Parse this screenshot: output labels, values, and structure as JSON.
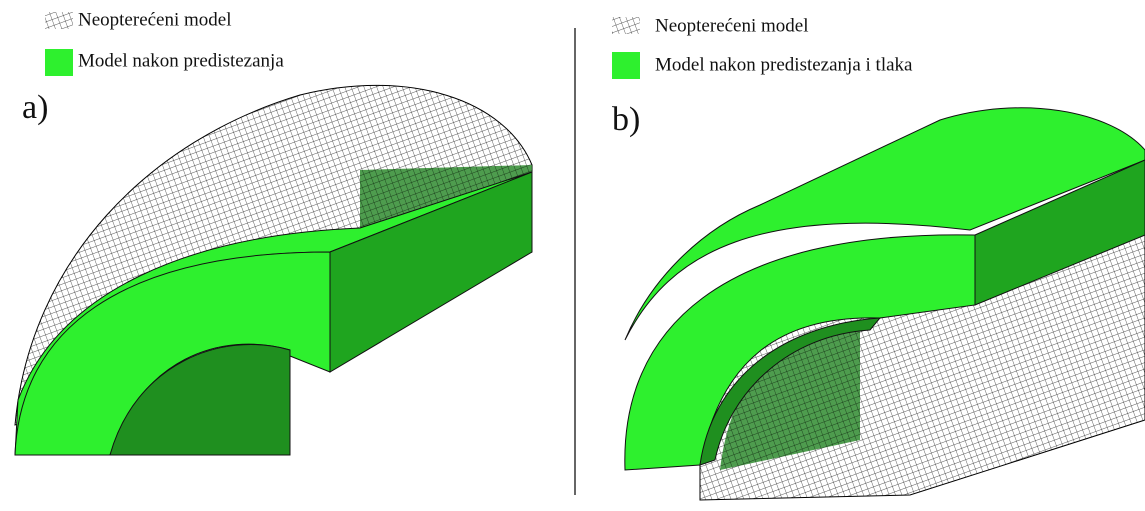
{
  "panels": [
    {
      "label": "a)",
      "legend": [
        "Neopterećeni model",
        "Model nakon predistezanja"
      ]
    },
    {
      "label": "b)",
      "legend": [
        "Neopterećeni model",
        "Model nakon predistezanja i tlaka"
      ]
    }
  ]
}
